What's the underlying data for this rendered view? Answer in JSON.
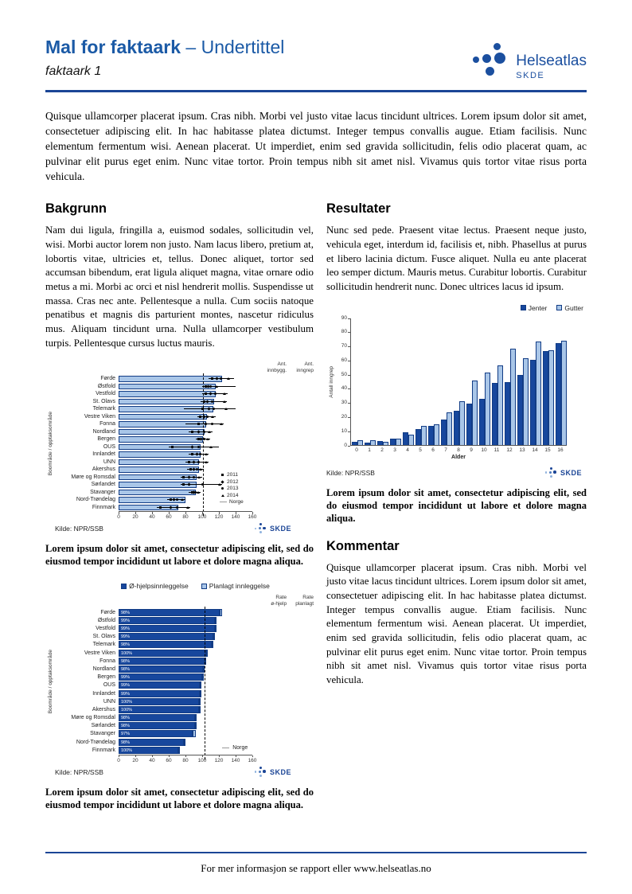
{
  "header": {
    "title": "Mal for faktaark",
    "subtitle": "– Undertittel",
    "doc_label": "faktaark 1",
    "logo_name": "Helseatlas",
    "logo_org": "SKDE"
  },
  "intro": "Quisque ullamcorper placerat ipsum. Cras nibh. Morbi vel justo vitae lacus tincidunt ultrices. Lorem ipsum dolor sit amet, consectetuer adipiscing elit. In hac habitasse platea dictumst. Integer tempus convallis augue. Etiam facilisis. Nunc elementum fermentum wisi. Aenean placerat. Ut imperdiet, enim sed gravida sollicitudin, felis odio placerat quam, ac pulvinar elit purus eget enim. Nunc vitae tortor. Proin tempus nibh sit amet nisl. Vivamus quis tortor vitae risus porta vehicula.",
  "sections": {
    "bakgrunn": {
      "heading": "Bakgrunn",
      "body": "Nam dui ligula, fringilla a, euismod sodales, sollicitudin vel, wisi. Morbi auctor lorem non justo. Nam lacus libero, pretium at, lobortis vitae, ultricies et, tellus. Donec aliquet, tortor sed accumsan bibendum, erat ligula aliquet magna, vitae ornare odio metus a mi. Morbi ac orci et nisl hendrerit mollis. Suspendisse ut massa. Cras nec ante. Pellentesque a nulla. Cum sociis natoque penatibus et magnis dis parturient montes, nascetur ridiculus mus. Aliquam tincidunt urna. Nulla ullamcorper vestibulum turpis. Pellentesque cursus luctus mauris."
    },
    "resultater": {
      "heading": "Resultater",
      "body": "Nunc sed pede. Praesent vitae lectus. Praesent neque justo, vehicula eget, interdum id, facilisis et, nibh. Phasellus at purus et libero lacinia dictum. Fusce aliquet. Nulla eu ante placerat leo semper dictum. Mauris metus. Curabitur lobortis. Curabitur sollicitudin hendrerit nunc. Donec ultrices lacus id ipsum."
    },
    "kommentar": {
      "heading": "Kommentar",
      "body": "Quisque ullamcorper placerat ipsum. Cras nibh. Morbi vel justo vitae lacus tincidunt ultrices. Lorem ipsum dolor sit amet, consectetuer adipiscing elit. In hac habitasse platea dictumst. Integer tempus convallis augue. Etiam facilisis. Nunc elementum fermentum wisi. Aenean placerat. Ut imperdiet, enim sed gravida sollicitudin, felis odio placerat quam, ac pulvinar elit purus eget enim. Nunc vitae tortor. Proin tempus nibh sit amet nisl. Vivamus quis tortor vitae risus porta vehicula."
    }
  },
  "caption": "Lorem ipsum dolor sit amet, consectetur adipiscing elit, sed do eiusmod tempor incididunt ut labore et dolore magna aliqua.",
  "footer": {
    "text": "For mer informasjon se rapport eller www.helseatlas.no"
  },
  "branding": {
    "skde_label": "SKDE"
  },
  "colors": {
    "primary": "#1b4596",
    "title_blue": "#1b5aa6",
    "bar_dark": "#17479d",
    "bar_light": "#a9c6e8",
    "bar_border": "#123c85",
    "marker_black": "#000000"
  },
  "chart_data": [
    {
      "id": "figure1-rate-by-region",
      "type": "bar",
      "orientation": "horizontal",
      "ylabel": "Boområde / opptaksområde",
      "xlim": [
        0,
        160
      ],
      "xticks": [
        0,
        20,
        40,
        60,
        80,
        100,
        120,
        140,
        160
      ],
      "reference_line": {
        "label": "Norge",
        "value": 101
      },
      "value_columns": [
        [
          "Ant.",
          "innbygg."
        ],
        [
          "Ant.",
          "inngrep"
        ]
      ],
      "legend": [
        {
          "symbol": "square",
          "label": "2011"
        },
        {
          "symbol": "diamond",
          "label": "2012"
        },
        {
          "symbol": "circle",
          "label": "2013"
        },
        {
          "symbol": "triangle",
          "label": "2014"
        },
        {
          "symbol": "line",
          "label": "Norge"
        }
      ],
      "source": "Kilde: NPR/SSB",
      "rows": [
        {
          "label": "Førde",
          "rate": 124,
          "innbygg": "23 330",
          "inngrep": "30",
          "range": [
            108,
            138
          ],
          "markers": [
            112,
            118,
            122,
            131
          ]
        },
        {
          "label": "Østfold",
          "rate": 116,
          "innbygg": "57 341",
          "inngrep": "69",
          "range": [
            100,
            140
          ],
          "markers": [
            104,
            107,
            110,
            117
          ]
        },
        {
          "label": "Vestfold",
          "rate": 116,
          "innbygg": "45 330",
          "inngrep": "54",
          "range": [
            100,
            130
          ],
          "markers": [
            104,
            110,
            116,
            126
          ]
        },
        {
          "label": "St. Olavs",
          "rate": 114,
          "innbygg": "82 253",
          "inngrep": "71",
          "range": [
            98,
            130
          ],
          "markers": [
            102,
            106,
            112,
            126
          ]
        },
        {
          "label": "Telemark",
          "rate": 113,
          "innbygg": "33 344",
          "inngrep": "40",
          "range": [
            78,
            140
          ],
          "markers": [
            100,
            108,
            114,
            128
          ]
        },
        {
          "label": "Vestre Viken",
          "rate": 106,
          "innbygg": "100 582",
          "inngrep": "107",
          "range": [
            94,
            116
          ],
          "markers": [
            98,
            102,
            106,
            112
          ]
        },
        {
          "label": "Fonna",
          "rate": 105,
          "innbygg": "39 744",
          "inngrep": "43",
          "range": [
            80,
            126
          ],
          "markers": [
            96,
            104,
            112,
            122
          ]
        },
        {
          "label": "Nordland",
          "rate": 103,
          "innbygg": "43 186",
          "inngrep": "47",
          "range": [
            84,
            112
          ],
          "markers": [
            88,
            96,
            102,
            108
          ]
        },
        {
          "label": "Bergen",
          "rate": 101,
          "innbygg": "91 673",
          "inngrep": "92",
          "range": [
            92,
            110
          ],
          "markers": [
            96,
            99,
            102,
            106
          ]
        },
        {
          "label": "OUS",
          "rate": 98,
          "innbygg": "95 564",
          "inngrep": "82",
          "range": [
            60,
            120
          ],
          "markers": [
            64,
            88,
            96,
            110
          ]
        },
        {
          "label": "Innlandet",
          "rate": 98,
          "innbygg": "75 231",
          "inngrep": "76",
          "range": [
            84,
            108
          ],
          "markers": [
            88,
            94,
            98,
            104
          ]
        },
        {
          "label": "UNN",
          "rate": 96,
          "innbygg": "37 609",
          "inngrep": "38",
          "range": [
            80,
            108
          ],
          "markers": [
            84,
            90,
            96,
            104
          ]
        },
        {
          "label": "Akershus",
          "rate": 96,
          "innbygg": "108 469",
          "inngrep": "105",
          "range": [
            82,
            102
          ],
          "markers": [
            86,
            90,
            94,
            98
          ]
        },
        {
          "label": "Møre og Romsdal",
          "rate": 93,
          "innbygg": "54 199",
          "inngrep": "52",
          "range": [
            74,
            100
          ],
          "markers": [
            78,
            84,
            90,
            96
          ]
        },
        {
          "label": "Sørlandet",
          "rate": 93,
          "innbygg": "83 768",
          "inngrep": "80",
          "range": [
            74,
            124
          ],
          "markers": [
            78,
            84,
            100,
            120
          ]
        },
        {
          "label": "Stavanger",
          "rate": 92,
          "innbygg": "81 507",
          "inngrep": "74",
          "range": [
            84,
            98
          ],
          "markers": [
            88,
            90,
            92,
            95
          ]
        },
        {
          "label": "Nord-Trøndelag",
          "rate": 80,
          "innbygg": "29 056",
          "inngrep": "24",
          "range": [
            58,
            80
          ],
          "markers": [
            62,
            66,
            70,
            76
          ]
        },
        {
          "label": "Finnmark",
          "rate": 71,
          "innbygg": "15 332",
          "inngrep": "11",
          "range": [
            46,
            86
          ],
          "markers": [
            50,
            62,
            70,
            82
          ]
        }
      ]
    },
    {
      "id": "figure2-age-sex",
      "type": "bar",
      "categories": [
        "0",
        "1",
        "2",
        "3",
        "4",
        "5",
        "6",
        "7",
        "8",
        "9",
        "10",
        "11",
        "12",
        "13",
        "14",
        "15",
        "16"
      ],
      "series": [
        {
          "name": "Jenter",
          "color": "#17479d",
          "values": [
            2,
            1.5,
            2.5,
            4,
            9,
            11,
            13.5,
            18,
            24,
            29,
            32.5,
            43.5,
            44,
            49,
            60,
            66,
            72
          ]
        },
        {
          "name": "Gutter",
          "color": "#a9c6e8",
          "values": [
            3,
            3,
            2,
            4,
            7,
            13,
            14.5,
            23,
            30.5,
            45.5,
            51,
            56,
            68,
            61,
            73,
            66.5,
            73.5
          ]
        }
      ],
      "xlabel": "Alder",
      "ylabel": "Antall inngrep",
      "ylim": [
        0,
        90
      ],
      "yticks": [
        0,
        10,
        20,
        30,
        40,
        50,
        60,
        70,
        80,
        90
      ],
      "legend_position": "top-right",
      "source": "Kilde: NPR/SSB"
    },
    {
      "id": "figure3-admission-type",
      "type": "bar",
      "orientation": "horizontal",
      "stacked": true,
      "ylabel": "Boområde / opptaksområde",
      "xlim": [
        0,
        160
      ],
      "xticks": [
        0,
        20,
        40,
        60,
        80,
        100,
        120,
        140,
        160
      ],
      "reference_line": {
        "label": "Norge",
        "value": 103
      },
      "legend": [
        {
          "label": "Ø-hjelpsinnleggelse",
          "color": "#17479d"
        },
        {
          "label": "Planlagt innleggelse",
          "color": "#a9c6e8"
        }
      ],
      "value_columns": [
        [
          "Rate",
          "ø-hjelp"
        ],
        [
          "Rate",
          "planlagt"
        ]
      ],
      "source": "Kilde: NPR/SSB",
      "rows": [
        {
          "label": "Førde",
          "ohjelp": 121,
          "planlagt": 3,
          "pct": "98%"
        },
        {
          "label": "Østfold",
          "ohjelp": 115,
          "planlagt": 1,
          "pct": "99%"
        },
        {
          "label": "Vestfold",
          "ohjelp": 115,
          "planlagt": 1,
          "pct": "99%"
        },
        {
          "label": "St. Olavs",
          "ohjelp": 113,
          "planlagt": 1,
          "pct": "99%"
        },
        {
          "label": "Telemark",
          "ohjelp": 111,
          "planlagt": 2,
          "pct": "98%"
        },
        {
          "label": "Vestre Viken",
          "ohjelp": 105,
          "planlagt": 1,
          "pct": "100%"
        },
        {
          "label": "Fonna",
          "ohjelp": 103,
          "planlagt": 2,
          "pct": "98%"
        },
        {
          "label": "Nordland",
          "ohjelp": 101,
          "planlagt": 2,
          "pct": "98%"
        },
        {
          "label": "Bergen",
          "ohjelp": 100,
          "planlagt": 1,
          "pct": "99%"
        },
        {
          "label": "OUS",
          "ohjelp": 97,
          "planlagt": 1,
          "pct": "99%"
        },
        {
          "label": "Innlandet",
          "ohjelp": 97,
          "planlagt": 1,
          "pct": "99%"
        },
        {
          "label": "UNN",
          "ohjelp": 96,
          "planlagt": 0,
          "pct": "100%"
        },
        {
          "label": "Akershus",
          "ohjelp": 96,
          "planlagt": 0,
          "pct": "100%"
        },
        {
          "label": "Møre og Romsdal",
          "ohjelp": 91,
          "planlagt": 2,
          "pct": "98%"
        },
        {
          "label": "Sørlandet",
          "ohjelp": 91,
          "planlagt": 2,
          "pct": "98%"
        },
        {
          "label": "Stavanger",
          "ohjelp": 89,
          "planlagt": 3,
          "pct": "97%"
        },
        {
          "label": "Nord-Trøndelag",
          "ohjelp": 78,
          "planlagt": 2,
          "pct": "98%"
        },
        {
          "label": "Finnmark",
          "ohjelp": 71,
          "planlagt": 0,
          "pct": "100%"
        }
      ]
    }
  ]
}
